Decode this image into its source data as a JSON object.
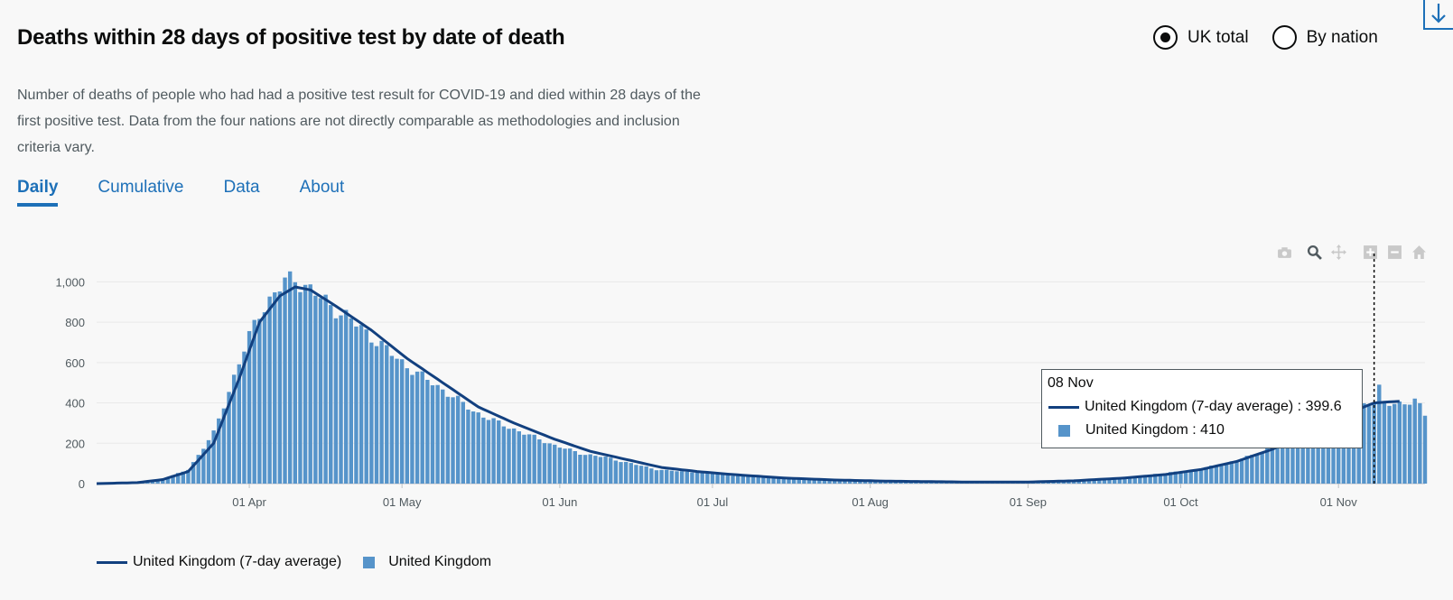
{
  "card": {
    "title": "Deaths within 28 days of positive test by date of death",
    "description": "Number of deaths of people who had had a positive test result for COVID-19 and died within 28 days of the first positive test. Data from the four nations are not directly comparable as methodologies and inclusion criteria vary."
  },
  "radios": [
    {
      "label": "UK total",
      "checked": true
    },
    {
      "label": "By nation",
      "checked": false
    }
  ],
  "tabs": [
    {
      "label": "Daily",
      "active": true
    },
    {
      "label": "Cumulative",
      "active": false
    },
    {
      "label": "Data",
      "active": false
    },
    {
      "label": "About",
      "active": false
    }
  ],
  "modebar": [
    "camera-icon",
    "zoom-icon",
    "pan-icon",
    "zoom-in-icon",
    "zoom-out-icon",
    "home-icon"
  ],
  "download_icon": "download-icon",
  "colors": {
    "bar": "#5694ca",
    "line": "#12407f",
    "link": "#1d70b8",
    "grid": "#e9e9e9"
  },
  "tooltip": {
    "date": "08 Nov",
    "line_label": "United Kingdom (7-day average) : 399.6",
    "bar_label": "United Kingdom  : 410"
  },
  "legend": {
    "line_label": "United Kingdom (7-day average)",
    "bar_label": "United Kingdom"
  },
  "chart_data": {
    "type": "bar",
    "x_start": "2020-03-02",
    "x_end": "2020-11-18",
    "x_ticks": [
      "01 Apr",
      "01 May",
      "01 Jun",
      "01 Jul",
      "01 Aug",
      "01 Sep",
      "01 Oct",
      "01 Nov"
    ],
    "y_ticks": [
      "0",
      "200",
      "400",
      "600",
      "800",
      "1,000"
    ],
    "ylim": [
      0,
      1100
    ],
    "grid": true,
    "hover_date": "08 Nov",
    "series": [
      {
        "name": "United Kingdom",
        "kind": "bar",
        "anchors": [
          [
            "2020-03-02",
            0
          ],
          [
            "2020-03-10",
            4
          ],
          [
            "2020-03-15",
            20
          ],
          [
            "2020-03-20",
            70
          ],
          [
            "2020-03-25",
            250
          ],
          [
            "2020-03-30",
            600
          ],
          [
            "2020-04-03",
            850
          ],
          [
            "2020-04-08",
            1000
          ],
          [
            "2020-04-10",
            1020
          ],
          [
            "2020-04-15",
            920
          ],
          [
            "2020-04-20",
            830
          ],
          [
            "2020-04-25",
            730
          ],
          [
            "2020-04-30",
            620
          ],
          [
            "2020-05-05",
            530
          ],
          [
            "2020-05-10",
            450
          ],
          [
            "2020-05-15",
            360
          ],
          [
            "2020-05-20",
            300
          ],
          [
            "2020-05-25",
            250
          ],
          [
            "2020-05-31",
            190
          ],
          [
            "2020-06-05",
            150
          ],
          [
            "2020-06-10",
            130
          ],
          [
            "2020-06-15",
            100
          ],
          [
            "2020-06-20",
            70
          ],
          [
            "2020-06-25",
            60
          ],
          [
            "2020-06-30",
            55
          ],
          [
            "2020-07-05",
            40
          ],
          [
            "2020-07-15",
            25
          ],
          [
            "2020-07-25",
            18
          ],
          [
            "2020-08-05",
            12
          ],
          [
            "2020-08-20",
            8
          ],
          [
            "2020-09-01",
            8
          ],
          [
            "2020-09-10",
            12
          ],
          [
            "2020-09-20",
            25
          ],
          [
            "2020-09-25",
            45
          ],
          [
            "2020-10-01",
            60
          ],
          [
            "2020-10-05",
            75
          ],
          [
            "2020-10-10",
            100
          ],
          [
            "2020-10-15",
            140
          ],
          [
            "2020-10-20",
            190
          ],
          [
            "2020-10-25",
            250
          ],
          [
            "2020-10-30",
            320
          ],
          [
            "2020-11-04",
            380
          ],
          [
            "2020-11-08",
            410
          ],
          [
            "2020-11-09",
            470
          ],
          [
            "2020-11-10",
            390
          ],
          [
            "2020-11-13",
            400
          ],
          [
            "2020-11-16",
            410
          ],
          [
            "2020-11-17",
            380
          ],
          [
            "2020-11-18",
            340
          ]
        ]
      },
      {
        "name": "United Kingdom (7-day average)",
        "kind": "line",
        "anchors": [
          [
            "2020-03-02",
            0
          ],
          [
            "2020-03-10",
            5
          ],
          [
            "2020-03-15",
            20
          ],
          [
            "2020-03-20",
            60
          ],
          [
            "2020-03-25",
            200
          ],
          [
            "2020-03-30",
            520
          ],
          [
            "2020-04-03",
            800
          ],
          [
            "2020-04-07",
            930
          ],
          [
            "2020-04-10",
            975
          ],
          [
            "2020-04-13",
            960
          ],
          [
            "2020-04-18",
            880
          ],
          [
            "2020-04-25",
            760
          ],
          [
            "2020-05-02",
            620
          ],
          [
            "2020-05-09",
            500
          ],
          [
            "2020-05-16",
            380
          ],
          [
            "2020-05-23",
            300
          ],
          [
            "2020-05-31",
            220
          ],
          [
            "2020-06-07",
            160
          ],
          [
            "2020-06-14",
            120
          ],
          [
            "2020-06-21",
            80
          ],
          [
            "2020-06-28",
            60
          ],
          [
            "2020-07-05",
            45
          ],
          [
            "2020-07-15",
            28
          ],
          [
            "2020-07-25",
            18
          ],
          [
            "2020-08-05",
            12
          ],
          [
            "2020-08-20",
            8
          ],
          [
            "2020-09-01",
            8
          ],
          [
            "2020-09-10",
            14
          ],
          [
            "2020-09-20",
            28
          ],
          [
            "2020-09-28",
            45
          ],
          [
            "2020-10-05",
            70
          ],
          [
            "2020-10-12",
            110
          ],
          [
            "2020-10-19",
            170
          ],
          [
            "2020-10-26",
            250
          ],
          [
            "2020-11-01",
            320
          ],
          [
            "2020-11-05",
            370
          ],
          [
            "2020-11-08",
            399.6
          ],
          [
            "2020-11-11",
            405
          ],
          [
            "2020-11-13",
            408
          ]
        ]
      }
    ]
  }
}
